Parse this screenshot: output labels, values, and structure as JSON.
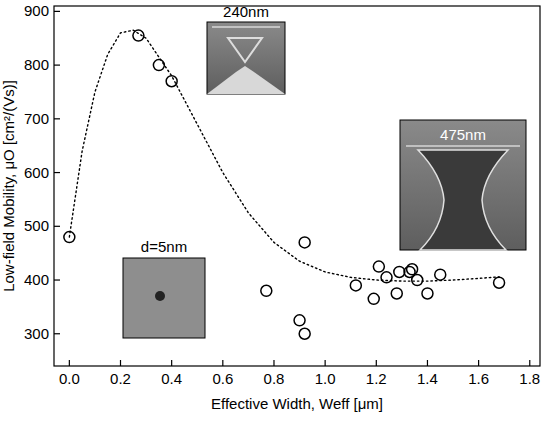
{
  "chart_data": {
    "type": "scatter",
    "x_label": "Effective Width, Weff  [μm]",
    "y_label": "Low-field Mobility, μO  [cm²/(Vs)]",
    "annotations": [
      "240nm",
      "475nm",
      "d=5nm"
    ],
    "xlim": [
      -0.06,
      1.84
    ],
    "ylim": [
      240,
      910
    ],
    "xticks": [
      {
        "value": 0,
        "label": "0.0"
      },
      0.2,
      0.4,
      0.6,
      0.8,
      {
        "value": 1,
        "label": "1.0"
      },
      1.2,
      1.4,
      1.6,
      1.8
    ],
    "yticks": [
      300,
      400,
      500,
      600,
      700,
      800,
      900
    ],
    "grid": false,
    "series": [
      {
        "type": "scatter",
        "marker": "circle",
        "color": "#000000",
        "x": [
          0.0,
          0.27,
          0.35,
          0.4,
          0.77,
          0.9,
          0.92,
          0.92,
          1.12,
          1.19,
          1.21,
          1.24,
          1.28,
          1.29,
          1.33,
          1.34,
          1.36,
          1.4,
          1.45,
          1.68
        ],
        "values": [
          480,
          855,
          800,
          770,
          380,
          325,
          300,
          470,
          390,
          365,
          425,
          405,
          375,
          415,
          415,
          420,
          400,
          375,
          410,
          395
        ]
      },
      {
        "type": "line",
        "line_style": "dotted",
        "color": "#000000",
        "x": [
          0,
          0.05,
          0.1,
          0.15,
          0.2,
          0.25,
          0.3,
          0.4,
          0.5,
          0.6,
          0.7,
          0.8,
          0.9,
          1.0,
          1.1,
          1.2,
          1.3,
          1.4,
          1.5,
          1.6,
          1.68
        ],
        "values": [
          480,
          640,
          750,
          820,
          860,
          865,
          850,
          780,
          690,
          600,
          525,
          470,
          435,
          415,
          405,
          400,
          398,
          398,
          400,
          403,
          406
        ]
      }
    ]
  }
}
